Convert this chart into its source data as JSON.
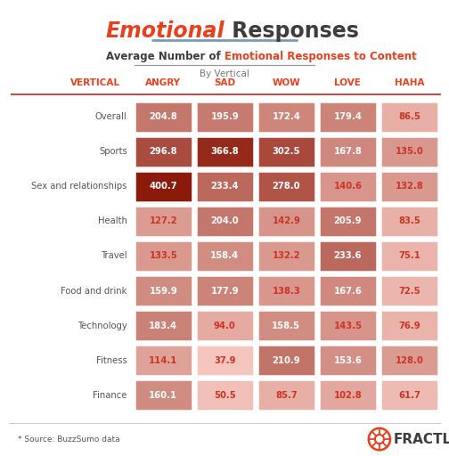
{
  "title_bold": "Emotional",
  "title_normal": " Responses",
  "subtitle_normal": "Average Number of ",
  "subtitle_bold": "Emotional Responses to Content",
  "subtitle2": "By Vertical",
  "col_header_line_color": "#c0392b",
  "columns": [
    "VERTICAL",
    "ANGRY",
    "SAD",
    "WOW",
    "LOVE",
    "HAHA"
  ],
  "rows": [
    [
      "Overall",
      204.8,
      195.9,
      172.4,
      179.4,
      86.5
    ],
    [
      "Sports",
      296.8,
      366.8,
      302.5,
      167.8,
      135.0
    ],
    [
      "Sex and relationships",
      400.7,
      233.4,
      278.0,
      140.6,
      132.8
    ],
    [
      "Health",
      127.2,
      204.0,
      142.9,
      205.9,
      83.5
    ],
    [
      "Travel",
      133.5,
      158.4,
      132.2,
      233.6,
      75.1
    ],
    [
      "Food and drink",
      159.9,
      177.9,
      138.3,
      167.6,
      72.5
    ],
    [
      "Technology",
      183.4,
      94.0,
      158.5,
      143.5,
      76.9
    ],
    [
      "Fitness",
      114.1,
      37.9,
      210.9,
      153.6,
      128.0
    ],
    [
      "Finance",
      160.1,
      50.5,
      85.7,
      102.8,
      61.7
    ]
  ],
  "background_color": "#ffffff",
  "cell_min_color": [
    245,
    198,
    190
  ],
  "cell_max_color": [
    139,
    26,
    10
  ],
  "title_color": "#e8401c",
  "title_normal_color": "#3d3d3d",
  "header_color": "#e8401c",
  "row_label_color": "#555555",
  "source_text": "* Source: BuzzSumo data",
  "fractl_text": "FRACTL",
  "underline_color": "#7a9ab5",
  "subtitle_line_color": "#999999"
}
